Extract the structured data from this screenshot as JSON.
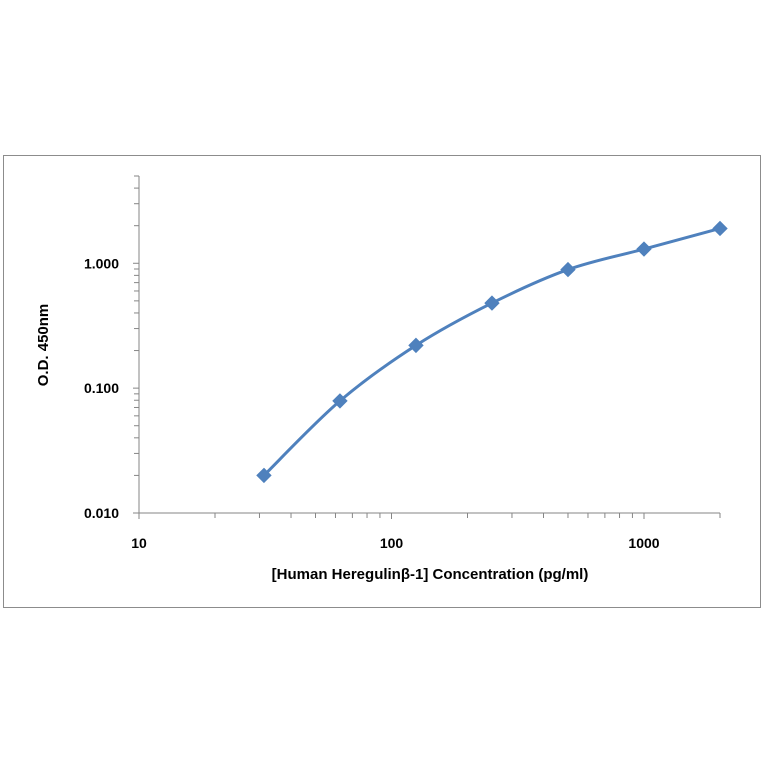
{
  "chart_data": {
    "type": "line",
    "title": "",
    "xlabel": "[Human Heregulinβ-1] Concentration  (pg/ml)",
    "ylabel": "O.D. 450nm",
    "x_scale": "log",
    "y_scale": "log",
    "xlim": [
      10,
      2000
    ],
    "ylim": [
      0.01,
      5
    ],
    "x_ticks": [
      {
        "value": 10,
        "label": "10"
      },
      {
        "value": 100,
        "label": "100"
      },
      {
        "value": 1000,
        "label": "1000"
      }
    ],
    "y_ticks": [
      {
        "value": 0.01,
        "label": "0.010"
      },
      {
        "value": 0.1,
        "label": "0.100"
      },
      {
        "value": 1,
        "label": "1.000"
      }
    ],
    "grid": false,
    "legend": "none",
    "series": [
      {
        "color": "#4F81BD",
        "marker": "diamond",
        "smooth": true,
        "x": [
          31.25,
          62.5,
          125,
          250,
          500,
          1000,
          2000
        ],
        "y": [
          0.02,
          0.079,
          0.22,
          0.48,
          0.89,
          1.3,
          1.9
        ]
      }
    ]
  }
}
